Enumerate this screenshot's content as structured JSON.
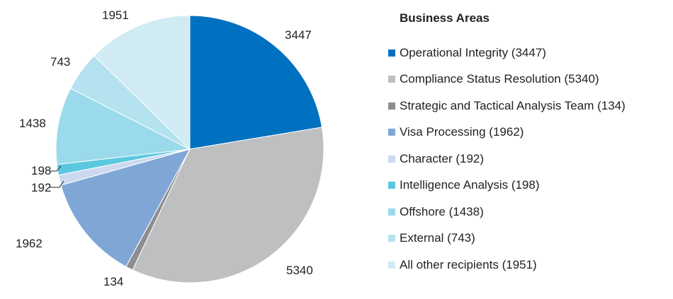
{
  "chart_data": {
    "type": "pie",
    "title": "",
    "legend_title": "Business Areas",
    "legend_position": "right",
    "start_angle_deg": 0,
    "direction": "clockwise",
    "slices": [
      {
        "name": "Operational Integrity",
        "value": 3447,
        "label": "3447",
        "legend": "Operational Integrity (3447)",
        "color": "#0070C0"
      },
      {
        "name": "Compliance Status Resolution",
        "value": 5340,
        "label": "5340",
        "legend": "Compliance Status Resolution (5340)",
        "color": "#BEBFC1"
      },
      {
        "name": "Strategic and Tactical Analysis Team",
        "value": 134,
        "label": "134",
        "legend": "Strategic and Tactical Analysis Team (134)",
        "color": "#8C8D90"
      },
      {
        "name": "Visa Processing",
        "value": 1962,
        "label": "1962",
        "legend": "Visa Processing (1962)",
        "color": "#7FA7D6"
      },
      {
        "name": "Character",
        "value": 192,
        "label": "192",
        "legend": "Character (192)",
        "color": "#CCD9F0"
      },
      {
        "name": "Intelligence Analysis",
        "value": 198,
        "label": "198",
        "legend": "Intelligence Analysis (198)",
        "color": "#5CC8E0"
      },
      {
        "name": "Offshore",
        "value": 1438,
        "label": "1438",
        "legend": "Offshore (1438)",
        "color": "#9ADAEA"
      },
      {
        "name": "External",
        "value": 743,
        "label": "743",
        "legend": "External (743)",
        "color": "#B4E2EE"
      },
      {
        "name": "All other recipients",
        "value": 1951,
        "label": "1951",
        "legend": "All other recipients (1951)",
        "color": "#D0EBF4"
      }
    ]
  }
}
